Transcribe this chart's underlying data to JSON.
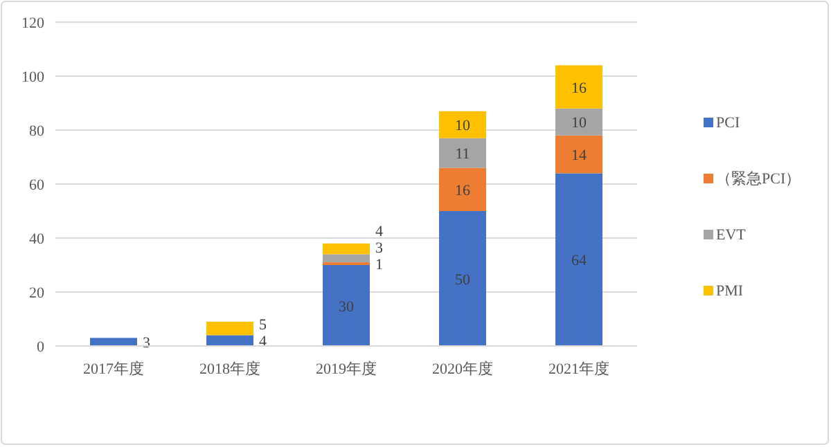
{
  "chart_data": {
    "type": "bar",
    "stacked": true,
    "categories": [
      "2017年度",
      "2018年度",
      "2019年度",
      "2020年度",
      "2021年度"
    ],
    "series": [
      {
        "name": "PCI",
        "color": "#4472c4",
        "values": [
          3,
          4,
          30,
          50,
          64
        ]
      },
      {
        "name": "（緊急PCI）",
        "color": "#ed7d31",
        "values": [
          null,
          null,
          1,
          16,
          14
        ]
      },
      {
        "name": "EVT",
        "color": "#a5a5a5",
        "values": [
          null,
          null,
          3,
          11,
          10
        ]
      },
      {
        "name": "PMI",
        "color": "#ffc000",
        "values": [
          null,
          5,
          4,
          10,
          16
        ]
      }
    ],
    "ylim": [
      0,
      120
    ],
    "yticks": [
      0,
      20,
      40,
      60,
      80,
      100,
      120
    ],
    "grid": "y",
    "legend": "right",
    "data_labels": true
  }
}
